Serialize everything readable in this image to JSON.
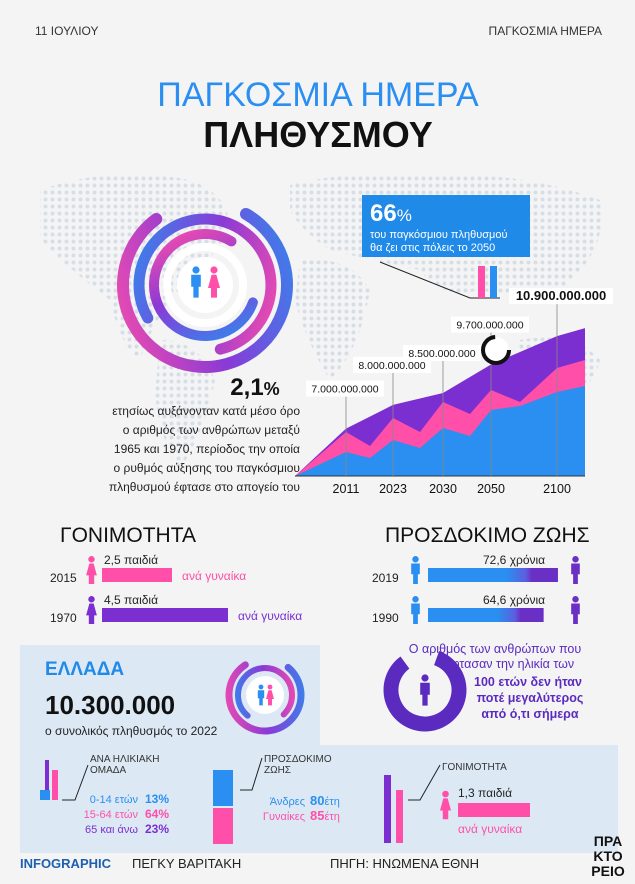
{
  "header": {
    "date": "11 ΙΟΥΛΙΟΥ",
    "section": "ΠΑΓΚΟΣΜΙΑ ΗΜΕΡΑ"
  },
  "title": {
    "line1": "ΠΑΓΚΟΣΜΙΑ ΗΜΕΡΑ",
    "line2": "ΠΛΗΘΥΣΜΟΥ"
  },
  "urban": {
    "figure": "66",
    "unit": "%",
    "text": [
      "του παγκόσμιου πληθυσμού",
      "θα ζει στις πόλεις το 2050"
    ]
  },
  "growth": {
    "figure": "2,1",
    "unit": "%",
    "text": [
      "ετησίως αυξάνονταν κατά μέσο όρο",
      "ο αριθμός των ανθρώπων μεταξύ",
      "1965 και 1970, περίοδος την οποία",
      "ο ρυθμός αύξησης του παγκόσμιου",
      "πληθυσμού έφτασε στο απογείο του"
    ]
  },
  "chart_data": {
    "type": "area",
    "categories": [
      "2011",
      "2023",
      "2030",
      "2050",
      "2100"
    ],
    "values": [
      7000000000,
      8000000000,
      8500000000,
      9700000000,
      10900000000
    ],
    "value_labels": [
      "7.000.000.000",
      "8.000.000.000",
      "8.500.000.000",
      "9.700.000.000",
      "10.900.000.000"
    ],
    "ylim": [
      5000000000,
      12000000000
    ],
    "color": "#7b2fd1"
  },
  "fertility": {
    "title": "ΓΟΝΙΜΟΤΗΤΑ",
    "rows": [
      {
        "year": "2015",
        "value": 2.5,
        "label": "2,5 παιδιά",
        "unit": "ανά γυναίκα",
        "color": "#ff4fa8"
      },
      {
        "year": "1970",
        "value": 4.5,
        "label": "4,5 παιδιά",
        "unit": "ανά γυναίκα",
        "color": "#7b2fd1"
      }
    ]
  },
  "life_expectancy": {
    "title": "ΠΡΟΣΔΟΚΙΜΟ ΖΩΗΣ",
    "rows": [
      {
        "year": "2019",
        "value": 72.6,
        "label": "72,6 χρόνια"
      },
      {
        "year": "1990",
        "value": 64.6,
        "label": "64,6 χρόνια"
      }
    ]
  },
  "centenarians": {
    "text": [
      "Ο αριθμός των ανθρώπων που",
      "έφτασαν την ηλικία των"
    ],
    "bold": [
      "100 ετών δεν ήταν",
      "ποτέ μεγαλύτερος",
      "από ό,τι σήμερα"
    ]
  },
  "greece": {
    "title": "ΕΛΛΑΔΑ",
    "population": "10.300.000",
    "caption": "ο συνολικός πληθυσμός το 2022",
    "age": {
      "title": [
        "ΑΝΑ ΗΛΙΚΙΑΚΗ",
        "ΟΜΑΔΑ"
      ],
      "rows": [
        {
          "label": "0-14 ετών",
          "value": "13%"
        },
        {
          "label": "15-64 ετών",
          "value": "64%"
        },
        {
          "label": "65 και άνω",
          "value": "23%"
        }
      ]
    },
    "life": {
      "title": [
        "ΠΡΟΣΔΟΚΙΜΟ",
        "ΖΩΗΣ"
      ],
      "rows": [
        {
          "label": "Άνδρες",
          "value": "80",
          "unit": "έτη"
        },
        {
          "label": "Γυναίκες",
          "value": "85",
          "unit": "έτη"
        }
      ]
    },
    "fertility": {
      "title": "ΓΟΝΙΜΟΤΗΤΑ",
      "label": "1,3 παιδιά",
      "unit": "ανά γυναίκα"
    }
  },
  "footer": {
    "tag": "INFOGRAPHIC",
    "author": "ΠΕΓΚΥ ΒΑΡΙΤΑΚΗ",
    "source": "ΠΗΓΗ: ΗΝΩΜΕΝΑ ΕΘΝΗ",
    "logo": [
      "ΠΡΑ",
      "ΚΤΟ",
      "ΡΕΙΟ"
    ]
  }
}
